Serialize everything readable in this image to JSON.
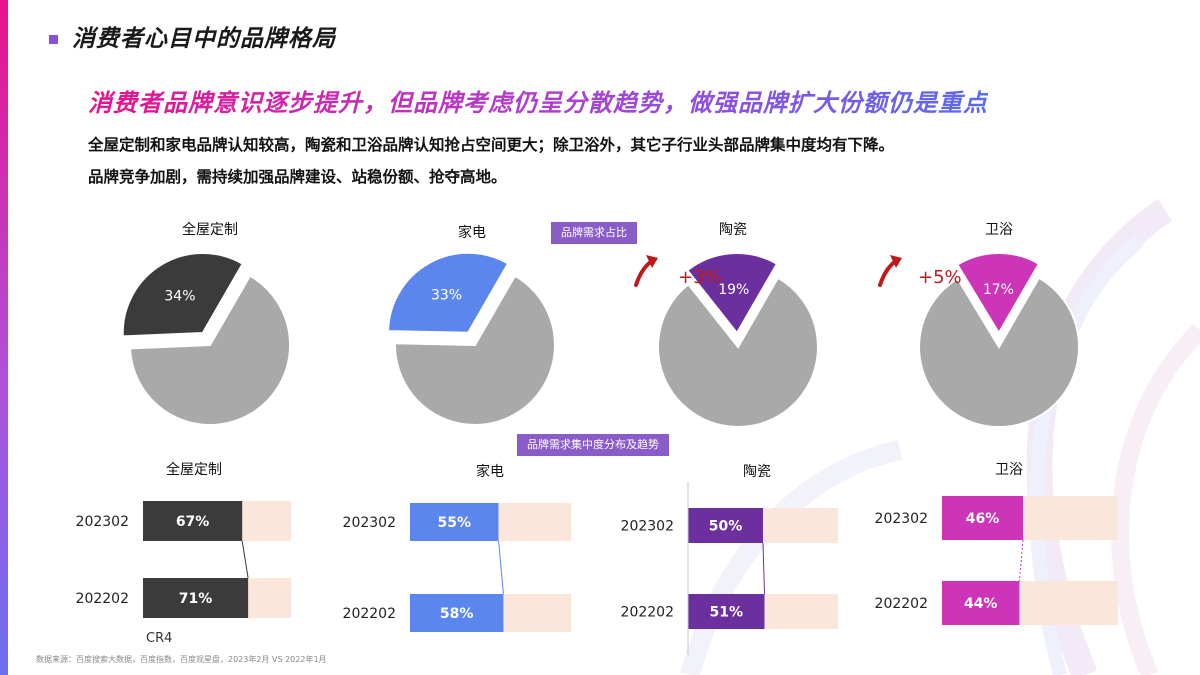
{
  "page_title": "消费者心目中的品牌格局",
  "subheadline": "消费者品牌意识逐步提升，但品牌考虑仍呈分散趋势，做强品牌扩大份额仍是重点",
  "body_lines": [
    "全屋定制和家电品牌认知较高，陶瓷和卫浴品牌认知抢占空间更大；除卫浴外，其它子行业头部品牌集中度均有下降。",
    "品牌竞争加剧，需持续加强品牌建设、站稳份额、抢夺高地。"
  ],
  "tags": {
    "pie_section": "品牌需求占比",
    "bar_section": "品牌需求集中度分布及趋势"
  },
  "cr4_label": "CR4",
  "footer_note": "数据来源：百度搜索大数据，百度指数，百度观星盘，2023年2月 VS 2022年1月",
  "colors": {
    "grey": "#a9a9a9",
    "peach": "#fbe6dc",
    "full_home": "#3b3b3b",
    "appliance": "#5b86ee",
    "ceramic": "#6b2f9e",
    "bath": "#cc35b8",
    "arrow": "#c01818"
  },
  "chart_data": [
    {
      "type": "pie",
      "title": "全屋定制",
      "slices": [
        {
          "label": "34%",
          "value": 34,
          "color": "#3b3b3b"
        },
        {
          "label": "",
          "value": 66,
          "color": "#a9a9a9"
        }
      ],
      "change": ""
    },
    {
      "type": "pie",
      "title": "家电",
      "slices": [
        {
          "label": "33%",
          "value": 33,
          "color": "#5b86ee"
        },
        {
          "label": "",
          "value": 67,
          "color": "#a9a9a9"
        }
      ],
      "change": ""
    },
    {
      "type": "pie",
      "title": "陶瓷",
      "slices": [
        {
          "label": "19%",
          "value": 19,
          "color": "#6b2f9e"
        },
        {
          "label": "",
          "value": 81,
          "color": "#a9a9a9"
        }
      ],
      "change": "+3%"
    },
    {
      "type": "pie",
      "title": "卫浴",
      "slices": [
        {
          "label": "17%",
          "value": 17,
          "color": "#cc35b8"
        },
        {
          "label": "",
          "value": 83,
          "color": "#a9a9a9"
        }
      ],
      "change": "+5%"
    },
    {
      "type": "bar",
      "title": "全屋定制",
      "categories": [
        "202302",
        "202202"
      ],
      "values": [
        67,
        71
      ],
      "labels": [
        "67%",
        "71%"
      ],
      "xlim": [
        0,
        100
      ],
      "color": "#3b3b3b"
    },
    {
      "type": "bar",
      "title": "家电",
      "categories": [
        "202302",
        "202202"
      ],
      "values": [
        55,
        58
      ],
      "labels": [
        "55%",
        "58%"
      ],
      "xlim": [
        0,
        100
      ],
      "color": "#5b86ee"
    },
    {
      "type": "bar",
      "title": "陶瓷",
      "categories": [
        "202302",
        "202202"
      ],
      "values": [
        50,
        51
      ],
      "labels": [
        "50%",
        "51%"
      ],
      "xlim": [
        0,
        100
      ],
      "color": "#6b2f9e"
    },
    {
      "type": "bar",
      "title": "卫浴",
      "categories": [
        "202302",
        "202202"
      ],
      "values": [
        46,
        44
      ],
      "labels": [
        "46%",
        "44%"
      ],
      "xlim": [
        0,
        100
      ],
      "color": "#cc35b8"
    }
  ]
}
